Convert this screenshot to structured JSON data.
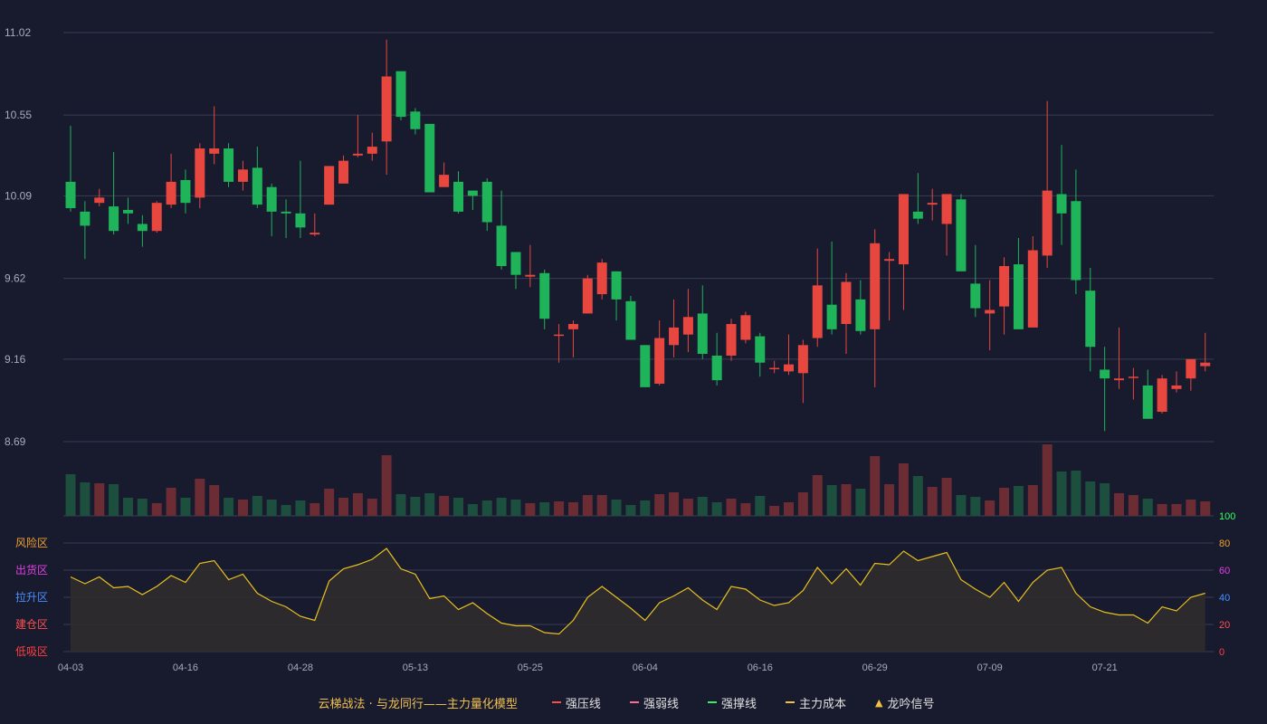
{
  "chart_data": {
    "type": "candlestick",
    "y_axis": {
      "ticks": [
        "11.02",
        "10.55",
        "10.09",
        "9.62",
        "9.16",
        "8.69"
      ],
      "range": [
        8.69,
        11.02
      ]
    },
    "x_labels": [
      {
        "index": 0,
        "text": "04-03"
      },
      {
        "index": 8,
        "text": "04-16"
      },
      {
        "index": 16,
        "text": "04-28"
      },
      {
        "index": 24,
        "text": "05-13"
      },
      {
        "index": 32,
        "text": "05-25"
      },
      {
        "index": 40,
        "text": "06-04"
      },
      {
        "index": 48,
        "text": "06-16"
      },
      {
        "index": 56,
        "text": "06-29"
      },
      {
        "index": 64,
        "text": "07-09"
      },
      {
        "index": 72,
        "text": "07-21"
      }
    ],
    "candles": [
      [
        10.17,
        10.02,
        10.49,
        10.0
      ],
      [
        10.0,
        9.92,
        10.06,
        9.73
      ],
      [
        10.05,
        10.08,
        10.13,
        10.03
      ],
      [
        10.03,
        9.89,
        10.34,
        9.87
      ],
      [
        10.01,
        9.99,
        10.08,
        9.93
      ],
      [
        9.93,
        9.89,
        9.98,
        9.8
      ],
      [
        9.89,
        10.05,
        10.06,
        9.88
      ],
      [
        10.04,
        10.17,
        10.33,
        10.02
      ],
      [
        10.18,
        10.05,
        10.24,
        9.99
      ],
      [
        10.08,
        10.36,
        10.39,
        10.02
      ],
      [
        10.33,
        10.36,
        10.6,
        10.27
      ],
      [
        10.36,
        10.17,
        10.39,
        10.14
      ],
      [
        10.17,
        10.24,
        10.29,
        10.12
      ],
      [
        10.25,
        10.04,
        10.37,
        10.02
      ],
      [
        10.14,
        10.0,
        10.16,
        9.86
      ],
      [
        10.0,
        9.99,
        10.07,
        9.85
      ],
      [
        9.99,
        9.91,
        10.29,
        9.85
      ],
      [
        9.87,
        9.88,
        9.99,
        9.86
      ],
      [
        10.04,
        10.26,
        10.26,
        10.04
      ],
      [
        10.16,
        10.29,
        10.32,
        10.16
      ],
      [
        10.32,
        10.33,
        10.55,
        10.31
      ],
      [
        10.33,
        10.37,
        10.45,
        10.29
      ],
      [
        10.4,
        10.77,
        10.98,
        10.21
      ],
      [
        10.8,
        10.54,
        10.8,
        10.52
      ],
      [
        10.57,
        10.47,
        10.59,
        10.44
      ],
      [
        10.5,
        10.11,
        10.5,
        10.11
      ],
      [
        10.14,
        10.21,
        10.28,
        10.14
      ],
      [
        10.17,
        10.0,
        10.23,
        9.99
      ],
      [
        10.12,
        10.09,
        10.12,
        10.01
      ],
      [
        10.17,
        9.94,
        10.19,
        9.89
      ],
      [
        9.92,
        9.69,
        10.12,
        9.67
      ],
      [
        9.77,
        9.64,
        9.77,
        9.56
      ],
      [
        9.63,
        9.64,
        9.81,
        9.57
      ],
      [
        9.65,
        9.39,
        9.67,
        9.33
      ],
      [
        9.3,
        9.3,
        9.36,
        9.14
      ],
      [
        9.33,
        9.36,
        9.38,
        9.17
      ],
      [
        9.42,
        9.62,
        9.64,
        9.42
      ],
      [
        9.53,
        9.71,
        9.73,
        9.5
      ],
      [
        9.66,
        9.5,
        9.66,
        9.38
      ],
      [
        9.49,
        9.27,
        9.52,
        9.27
      ],
      [
        9.24,
        9.0,
        9.24,
        9.0
      ],
      [
        9.02,
        9.28,
        9.38,
        9.01
      ],
      [
        9.24,
        9.34,
        9.5,
        9.17
      ],
      [
        9.3,
        9.4,
        9.56,
        9.2
      ],
      [
        9.42,
        9.19,
        9.58,
        9.16
      ],
      [
        9.18,
        9.04,
        9.31,
        9.01
      ],
      [
        9.18,
        9.36,
        9.39,
        9.15
      ],
      [
        9.27,
        9.41,
        9.43,
        9.25
      ],
      [
        9.29,
        9.14,
        9.31,
        9.06
      ],
      [
        9.11,
        9.11,
        9.15,
        9.08
      ],
      [
        9.09,
        9.13,
        9.3,
        9.07
      ],
      [
        9.08,
        9.24,
        9.27,
        8.91
      ],
      [
        9.28,
        9.58,
        9.79,
        9.23
      ],
      [
        9.47,
        9.33,
        9.83,
        9.3
      ],
      [
        9.36,
        9.6,
        9.65,
        9.19
      ],
      [
        9.5,
        9.32,
        9.61,
        9.3
      ],
      [
        9.33,
        9.82,
        9.9,
        9.0
      ],
      [
        9.72,
        9.73,
        9.77,
        9.38
      ],
      [
        9.7,
        10.1,
        10.1,
        9.44
      ],
      [
        10.0,
        9.96,
        10.22,
        9.93
      ],
      [
        10.04,
        10.05,
        10.13,
        9.95
      ],
      [
        9.93,
        10.1,
        10.1,
        9.75
      ],
      [
        10.07,
        9.66,
        10.1,
        9.66
      ],
      [
        9.59,
        9.45,
        9.81,
        9.4
      ],
      [
        9.42,
        9.44,
        9.61,
        9.21
      ],
      [
        9.46,
        9.69,
        9.74,
        9.3
      ],
      [
        9.7,
        9.33,
        9.85,
        9.33
      ],
      [
        9.34,
        9.78,
        9.86,
        9.34
      ],
      [
        9.75,
        10.12,
        10.63,
        9.68
      ],
      [
        10.1,
        9.99,
        10.38,
        9.81
      ],
      [
        10.06,
        9.61,
        10.24,
        9.53
      ],
      [
        9.55,
        9.23,
        9.68,
        9.09
      ],
      [
        9.1,
        9.05,
        9.23,
        8.75
      ],
      [
        9.04,
        9.05,
        9.34,
        8.99
      ],
      [
        9.06,
        9.06,
        9.11,
        8.93
      ],
      [
        9.01,
        8.82,
        9.1,
        8.82
      ],
      [
        8.86,
        9.05,
        9.07,
        8.85
      ],
      [
        8.99,
        9.01,
        9.09,
        8.97
      ],
      [
        9.05,
        9.16,
        9.16,
        8.98
      ],
      [
        9.12,
        9.14,
        9.31,
        9.09
      ]
    ],
    "volume": [
      46,
      37,
      36,
      35,
      20,
      19,
      14,
      31,
      20,
      41,
      34,
      20,
      18,
      22,
      18,
      12,
      17,
      14,
      30,
      20,
      25,
      19,
      67,
      24,
      21,
      25,
      22,
      20,
      13,
      17,
      20,
      18,
      14,
      15,
      16,
      15,
      23,
      23,
      18,
      12,
      17,
      24,
      26,
      19,
      21,
      15,
      19,
      14,
      22,
      11,
      15,
      26,
      45,
      34,
      35,
      30,
      66,
      35,
      58,
      44,
      32,
      42,
      23,
      21,
      17,
      31,
      33,
      34,
      79,
      49,
      50,
      38,
      36,
      25,
      23,
      19,
      13,
      13,
      18,
      16
    ],
    "volume_max": 82,
    "indicator": {
      "zones": [
        "风险区",
        "出货区",
        "拉升区",
        "建仓区",
        "低吸区"
      ],
      "zone_colors": [
        "#f0a030",
        "#e040e0",
        "#4a90ff",
        "#ff5050",
        "#ff4040"
      ],
      "right_ticks": [
        100,
        80,
        60,
        40,
        20,
        0
      ],
      "right_tick_colors": [
        "#33ff66",
        "#f0a030",
        "#e040e0",
        "#4a90ff",
        "#ff5050",
        "#ff4040"
      ],
      "values": [
        55,
        50,
        55,
        47,
        48,
        42,
        48,
        56,
        51,
        65,
        67,
        53,
        57,
        43,
        37,
        33,
        26,
        23,
        52,
        61,
        64,
        68,
        76,
        61,
        57,
        39,
        41,
        31,
        36,
        28,
        21,
        19,
        19,
        14,
        13,
        23,
        40,
        48,
        40,
        32,
        23,
        36,
        41,
        47,
        38,
        31,
        48,
        46,
        38,
        34,
        36,
        45,
        62,
        50,
        61,
        49,
        65,
        64,
        74,
        67,
        70,
        73,
        53,
        46,
        40,
        51,
        37,
        51,
        60,
        62,
        43,
        33,
        29,
        27,
        27,
        21,
        33,
        30,
        40,
        43
      ]
    },
    "legend": {
      "title": "云梯战法 · 与龙同行——主力量化模型",
      "items": [
        {
          "label": "强压线",
          "color": "#ff4a4a",
          "style": "solid"
        },
        {
          "label": "强弱线",
          "color": "#ff6a8a",
          "style": "dashed"
        },
        {
          "label": "强撑线",
          "color": "#33ee66",
          "style": "solid"
        },
        {
          "label": "主力成本",
          "color": "#f0c040",
          "style": "dashed"
        },
        {
          "label": "龙吟信号",
          "color": "#f0c040",
          "style": "triangle"
        }
      ]
    },
    "colors": {
      "up": "#e8473f",
      "down": "#1fb35a",
      "up_volume": "#6b2c33",
      "down_volume": "#1d4f3e",
      "indicator_line": "#e8c020",
      "indicator_fill": "#2f2c2c",
      "grid": "#3a3d52",
      "axis_text": "#a8abbd"
    }
  }
}
